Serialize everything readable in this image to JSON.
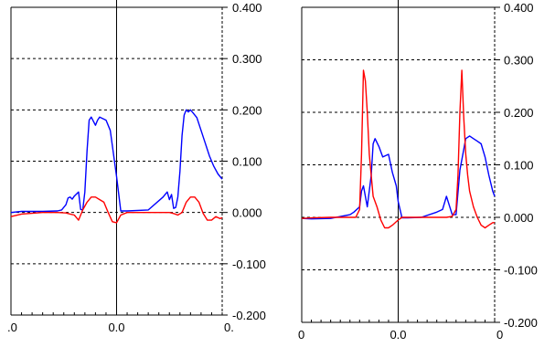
{
  "colors": {
    "background": "#ffffff",
    "axis": "#000000",
    "grid": "#000000",
    "series_blue": "#0000ff",
    "series_red": "#ff0000",
    "gutter": "#ffffff"
  },
  "chart_data": [
    {
      "type": "line",
      "title": "",
      "xlabel": "",
      "ylabel": "",
      "ylim": [
        -0.2,
        0.4
      ],
      "grid": "horizontal dashed",
      "legend": "none",
      "y_ticks": [
        "0.400",
        "0.300",
        "0.200",
        "0.100",
        "0.000",
        "-0.100",
        "-0.200"
      ],
      "x_tick_labels": [
        ".0",
        "0.0",
        "0."
      ],
      "x_tick_values": [
        -5.0,
        0.0,
        5.0
      ],
      "xlim": [
        -5.0,
        5.0
      ],
      "series": [
        {
          "color": "blue",
          "x": [
            -5.0,
            -4.5,
            -3.5,
            -2.8,
            -2.6,
            -2.4,
            -2.3,
            -2.2,
            -2.1,
            -2.0,
            -1.8,
            -1.7,
            -1.6,
            -1.5,
            -1.4,
            -1.3,
            -1.2,
            -1.1,
            -1.0,
            -0.9,
            -0.8,
            -0.5,
            -0.3,
            -0.2,
            -0.1,
            0.0,
            0.2,
            0.5,
            1.5,
            2.2,
            2.4,
            2.5,
            2.6,
            2.7,
            2.8,
            2.9,
            3.0,
            3.1,
            3.2,
            3.3,
            3.4,
            3.5,
            3.6,
            3.8,
            4.0,
            4.2,
            4.4,
            4.6,
            4.8,
            5.0
          ],
          "y": [
            0.0,
            0.002,
            0.002,
            0.003,
            0.005,
            0.015,
            0.028,
            0.03,
            0.026,
            0.032,
            0.04,
            0.006,
            0.005,
            0.04,
            0.12,
            0.18,
            0.186,
            0.178,
            0.17,
            0.18,
            0.186,
            0.18,
            0.16,
            0.13,
            0.1,
            0.07,
            0.003,
            0.003,
            0.005,
            0.03,
            0.04,
            0.025,
            0.035,
            0.008,
            0.01,
            0.03,
            0.08,
            0.15,
            0.19,
            0.2,
            0.196,
            0.2,
            0.195,
            0.185,
            0.16,
            0.135,
            0.11,
            0.09,
            0.075,
            0.065
          ]
        },
        {
          "color": "red",
          "x": [
            -5.0,
            -4.5,
            -3.5,
            -2.8,
            -2.4,
            -2.2,
            -2.0,
            -1.9,
            -1.8,
            -1.6,
            -1.4,
            -1.2,
            -1.0,
            -0.8,
            -0.6,
            -0.4,
            -0.2,
            0.0,
            0.2,
            0.5,
            1.5,
            2.2,
            2.5,
            2.7,
            2.9,
            3.1,
            3.3,
            3.5,
            3.7,
            3.9,
            4.1,
            4.3,
            4.5,
            4.7,
            4.9,
            5.0
          ],
          "y": [
            -0.008,
            -0.003,
            0.0,
            0.0,
            -0.001,
            -0.003,
            -0.005,
            -0.01,
            -0.015,
            0.005,
            0.02,
            0.03,
            0.03,
            0.025,
            0.02,
            0.0,
            -0.018,
            -0.02,
            -0.005,
            0.0,
            0.0,
            0.0,
            0.0,
            -0.002,
            -0.005,
            0.0,
            0.02,
            0.03,
            0.03,
            0.02,
            -0.002,
            -0.015,
            -0.015,
            -0.008,
            -0.012,
            -0.01
          ]
        }
      ]
    },
    {
      "type": "line",
      "title": "",
      "xlabel": "",
      "ylabel": "",
      "ylim": [
        -0.2,
        0.4
      ],
      "grid": "horizontal dashed",
      "legend": "none",
      "y_ticks": [
        "0.400",
        "0.300",
        "0.200",
        "0.100",
        "0.000",
        "-0.100",
        "-0.200"
      ],
      "x_tick_labels": [
        "0",
        "0.0",
        "0"
      ],
      "x_tick_values": [
        -5.0,
        0.0,
        5.0
      ],
      "xlim": [
        -5.0,
        5.0
      ],
      "series": [
        {
          "color": "blue",
          "x": [
            -5.0,
            -4.5,
            -3.5,
            -2.5,
            -2.3,
            -2.0,
            -1.9,
            -1.8,
            -1.6,
            -1.4,
            -1.3,
            -1.2,
            -1.0,
            -0.8,
            -0.5,
            -0.3,
            -0.1,
            0.0,
            0.2,
            0.5,
            1.2,
            2.0,
            2.3,
            2.5,
            2.8,
            3.0,
            3.2,
            3.5,
            3.7,
            3.9,
            4.1,
            4.3,
            4.5,
            4.7,
            4.9,
            5.0
          ],
          "y": [
            -0.002,
            -0.003,
            -0.002,
            0.005,
            0.01,
            0.02,
            0.05,
            0.06,
            0.02,
            0.08,
            0.14,
            0.15,
            0.135,
            0.115,
            0.12,
            0.085,
            0.06,
            0.03,
            -0.001,
            -0.001,
            0.0,
            0.01,
            0.015,
            0.04,
            0.005,
            0.005,
            0.09,
            0.15,
            0.155,
            0.15,
            0.145,
            0.14,
            0.115,
            0.08,
            0.05,
            0.04
          ]
        },
        {
          "color": "red",
          "x": [
            -5.0,
            -4.5,
            -3.5,
            -2.5,
            -2.2,
            -2.0,
            -1.9,
            -1.8,
            -1.7,
            -1.6,
            -1.5,
            -1.4,
            -1.3,
            -1.1,
            -0.9,
            -0.7,
            -0.5,
            -0.3,
            0.0,
            0.2,
            0.5,
            1.2,
            2.0,
            2.5,
            2.8,
            3.0,
            3.1,
            3.2,
            3.3,
            3.4,
            3.5,
            3.6,
            3.7,
            3.9,
            4.1,
            4.3,
            4.5,
            4.7,
            4.9,
            5.0
          ],
          "y": [
            -0.002,
            -0.001,
            0.0,
            0.0,
            0.0,
            0.015,
            0.12,
            0.28,
            0.26,
            0.2,
            0.12,
            0.08,
            0.04,
            0.02,
            -0.005,
            -0.02,
            -0.02,
            -0.015,
            -0.005,
            0.0,
            0.0,
            0.0,
            0.0,
            0.0,
            0.002,
            0.015,
            0.08,
            0.2,
            0.28,
            0.19,
            0.12,
            0.08,
            0.05,
            0.02,
            0.0,
            -0.015,
            -0.02,
            -0.015,
            -0.01,
            -0.01
          ]
        }
      ]
    }
  ]
}
